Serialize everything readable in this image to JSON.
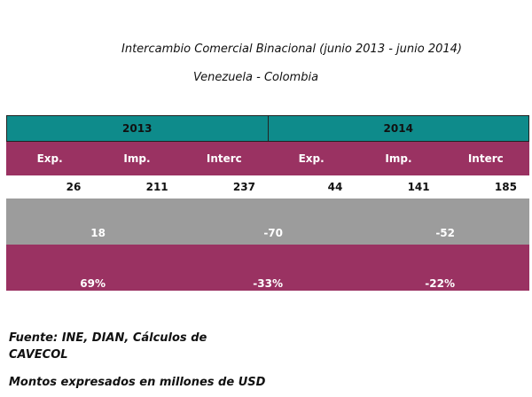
{
  "title": "Intercambio Comercial Binacional (junio 2013 - junio 2014)",
  "subtitle": "Venezuela - Colombia",
  "colors": {
    "year_header": "#0e8b8b",
    "column_header": "#9a3262",
    "balance_row": "#9c9c9c",
    "percent_row": "#9a3262"
  },
  "chart_data": {
    "type": "table",
    "years": [
      "2013",
      "2014"
    ],
    "columns": [
      "Exp.",
      "Imp.",
      "Interc",
      "Exp.",
      "Imp.",
      "Interc"
    ],
    "values": [
      "26",
      "211",
      "237",
      "44",
      "141",
      "185"
    ],
    "balance": [
      "18",
      "-70",
      "-52"
    ],
    "percent": [
      "69%",
      "-33%",
      "-22%"
    ]
  },
  "footer": {
    "source": "Fuente: INE, DIAN, Cálculos de CAVECOL",
    "note": "Montos expresados en millones de USD"
  }
}
